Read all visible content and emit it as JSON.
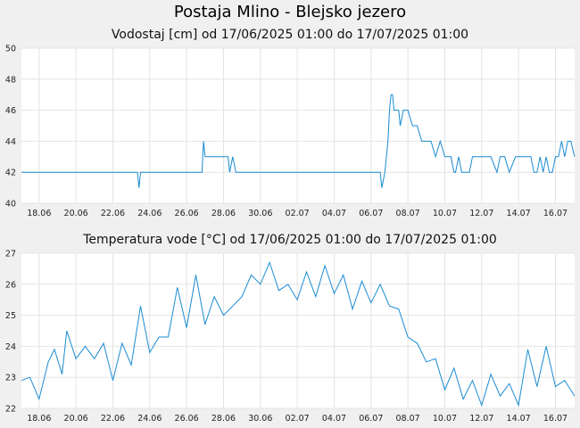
{
  "title": "Postaja Mlino - Blejsko jezero",
  "colors": {
    "series": "#1a8bd1",
    "grid": "#e4e4e4",
    "plot_bg": "#ffffff",
    "page_bg": "#f0f0f0"
  },
  "chart_data": [
    {
      "type": "line",
      "title": "Vodostaj [cm] od 17/06/2025 01:00 do 17/07/2025 01:00",
      "xlabel": "",
      "ylabel": "",
      "x_range": [
        "17/06/2025 01:00",
        "17/07/2025 01:00"
      ],
      "ylim": [
        40,
        50
      ],
      "yticks": [
        "40",
        "42",
        "44",
        "46",
        "48",
        "50"
      ],
      "xticks": [
        "18.06",
        "20.06",
        "22.06",
        "24.06",
        "26.06",
        "28.06",
        "30.06",
        "02.07",
        "04.07",
        "06.07",
        "08.07",
        "10.07",
        "12.07",
        "14.07",
        "16.07"
      ],
      "grid": true,
      "series": [
        {
          "x": [
            "17.06 01:00",
            "23.06 08:00",
            "23.06 10:00",
            "23.06 12:00",
            "26.06 20:00",
            "26.06 22:00",
            "27.06 00:00",
            "27.06 02:00",
            "28.06 06:00",
            "28.06 08:00",
            "28.06 12:00",
            "28.06 16:00",
            "28.06 20:00",
            "29.06 00:00",
            "06.07 12:00",
            "06.07 14:00",
            "06.07 18:00",
            "06.07 22:00",
            "07.07 00:00",
            "07.07 02:00",
            "07.07 04:00",
            "07.07 06:00",
            "07.07 12:00",
            "07.07 14:00",
            "07.07 18:00",
            "08.07 00:00",
            "08.07 06:00",
            "08.07 12:00",
            "08.07 18:00",
            "09.07 00:00",
            "09.07 06:00",
            "09.07 12:00",
            "09.07 18:00",
            "10.07 00:00",
            "10.07 08:00",
            "10.07 12:00",
            "10.07 14:00",
            "10.07 18:00",
            "10.07 22:00",
            "11.07 02:00",
            "11.07 08:00",
            "11.07 12:00",
            "11.07 20:00",
            "12.07 00:00",
            "12.07 12:00",
            "12.07 20:00",
            "13.07 00:00",
            "13.07 06:00",
            "13.07 12:00",
            "13.07 20:00",
            "14.07 00:00",
            "14.07 08:00",
            "14.07 16:00",
            "14.07 20:00",
            "15.07 00:00",
            "15.07 04:00",
            "15.07 08:00",
            "15.07 12:00",
            "15.07 16:00",
            "15.07 20:00",
            "16.07 00:00",
            "16.07 04:00",
            "16.07 08:00",
            "16.07 12:00",
            "16.07 16:00",
            "16.07 20:00",
            "17.07 01:00"
          ],
          "y": [
            42,
            42,
            41,
            42,
            42,
            44,
            43,
            43,
            43,
            42,
            43,
            42,
            42,
            42,
            42,
            41,
            42,
            44,
            46,
            47,
            47,
            46,
            46,
            45,
            46,
            46,
            45,
            45,
            44,
            44,
            44,
            43,
            44,
            43,
            43,
            42,
            42,
            43,
            42,
            42,
            42,
            43,
            43,
            43,
            43,
            42,
            43,
            43,
            42,
            43,
            43,
            43,
            43,
            42,
            42,
            43,
            42,
            43,
            42,
            42,
            43,
            43,
            44,
            43,
            44,
            44,
            43
          ]
        }
      ]
    },
    {
      "type": "line",
      "title": "Temperatura vode [°C] od 17/06/2025 01:00 do 17/07/2025 01:00",
      "xlabel": "",
      "ylabel": "",
      "x_range": [
        "17/06/2025 01:00",
        "17/07/2025 01:00"
      ],
      "ylim": [
        22,
        27
      ],
      "yticks": [
        "22",
        "23",
        "24",
        "25",
        "26",
        "27"
      ],
      "xticks": [
        "18.06",
        "20.06",
        "22.06",
        "24.06",
        "26.06",
        "28.06",
        "30.06",
        "02.07",
        "04.07",
        "06.07",
        "08.07",
        "10.07",
        "12.07",
        "14.07",
        "16.07"
      ],
      "grid": true,
      "series": [
        {
          "x": [
            "17.06 01:00",
            "17.06 12:00",
            "18.06 00:00",
            "18.06 12:00",
            "18.06 20:00",
            "19.06 06:00",
            "19.06 12:00",
            "20.06 00:00",
            "20.06 12:00",
            "21.06 00:00",
            "21.06 12:00",
            "22.06 00:00",
            "22.06 12:00",
            "23.06 00:00",
            "23.06 12:00",
            "24.06 00:00",
            "24.06 12:00",
            "25.06 00:00",
            "25.06 12:00",
            "26.06 00:00",
            "26.06 12:00",
            "27.06 00:00",
            "27.06 12:00",
            "28.06 00:00",
            "28.06 12:00",
            "29.06 00:00",
            "29.06 12:00",
            "30.06 00:00",
            "30.06 12:00",
            "01.07 00:00",
            "01.07 12:00",
            "02.07 00:00",
            "02.07 12:00",
            "03.07 00:00",
            "03.07 12:00",
            "04.07 00:00",
            "04.07 12:00",
            "05.07 00:00",
            "05.07 12:00",
            "06.07 00:00",
            "06.07 12:00",
            "07.07 00:00",
            "07.07 12:00",
            "08.07 00:00",
            "08.07 12:00",
            "09.07 00:00",
            "09.07 12:00",
            "10.07 00:00",
            "10.07 12:00",
            "11.07 00:00",
            "11.07 12:00",
            "12.07 00:00",
            "12.07 12:00",
            "13.07 00:00",
            "13.07 12:00",
            "14.07 00:00",
            "14.07 12:00",
            "15.07 00:00",
            "15.07 12:00",
            "16.07 00:00",
            "16.07 12:00",
            "17.07 01:00"
          ],
          "y": [
            22.9,
            23.0,
            22.3,
            23.5,
            23.9,
            23.1,
            24.5,
            23.6,
            24.0,
            23.6,
            24.1,
            22.9,
            24.1,
            23.4,
            25.3,
            23.8,
            24.3,
            24.3,
            25.9,
            24.6,
            26.3,
            24.7,
            25.6,
            25.0,
            25.3,
            25.6,
            26.3,
            26.0,
            26.7,
            25.8,
            26.0,
            25.5,
            26.4,
            25.6,
            26.6,
            25.7,
            26.3,
            25.2,
            26.1,
            25.4,
            26.0,
            25.3,
            25.2,
            24.3,
            24.1,
            23.5,
            23.6,
            22.6,
            23.3,
            22.3,
            22.9,
            22.1,
            23.1,
            22.4,
            22.8,
            22.1,
            23.9,
            22.7,
            24.0,
            22.7,
            22.9,
            22.4
          ]
        }
      ]
    }
  ]
}
